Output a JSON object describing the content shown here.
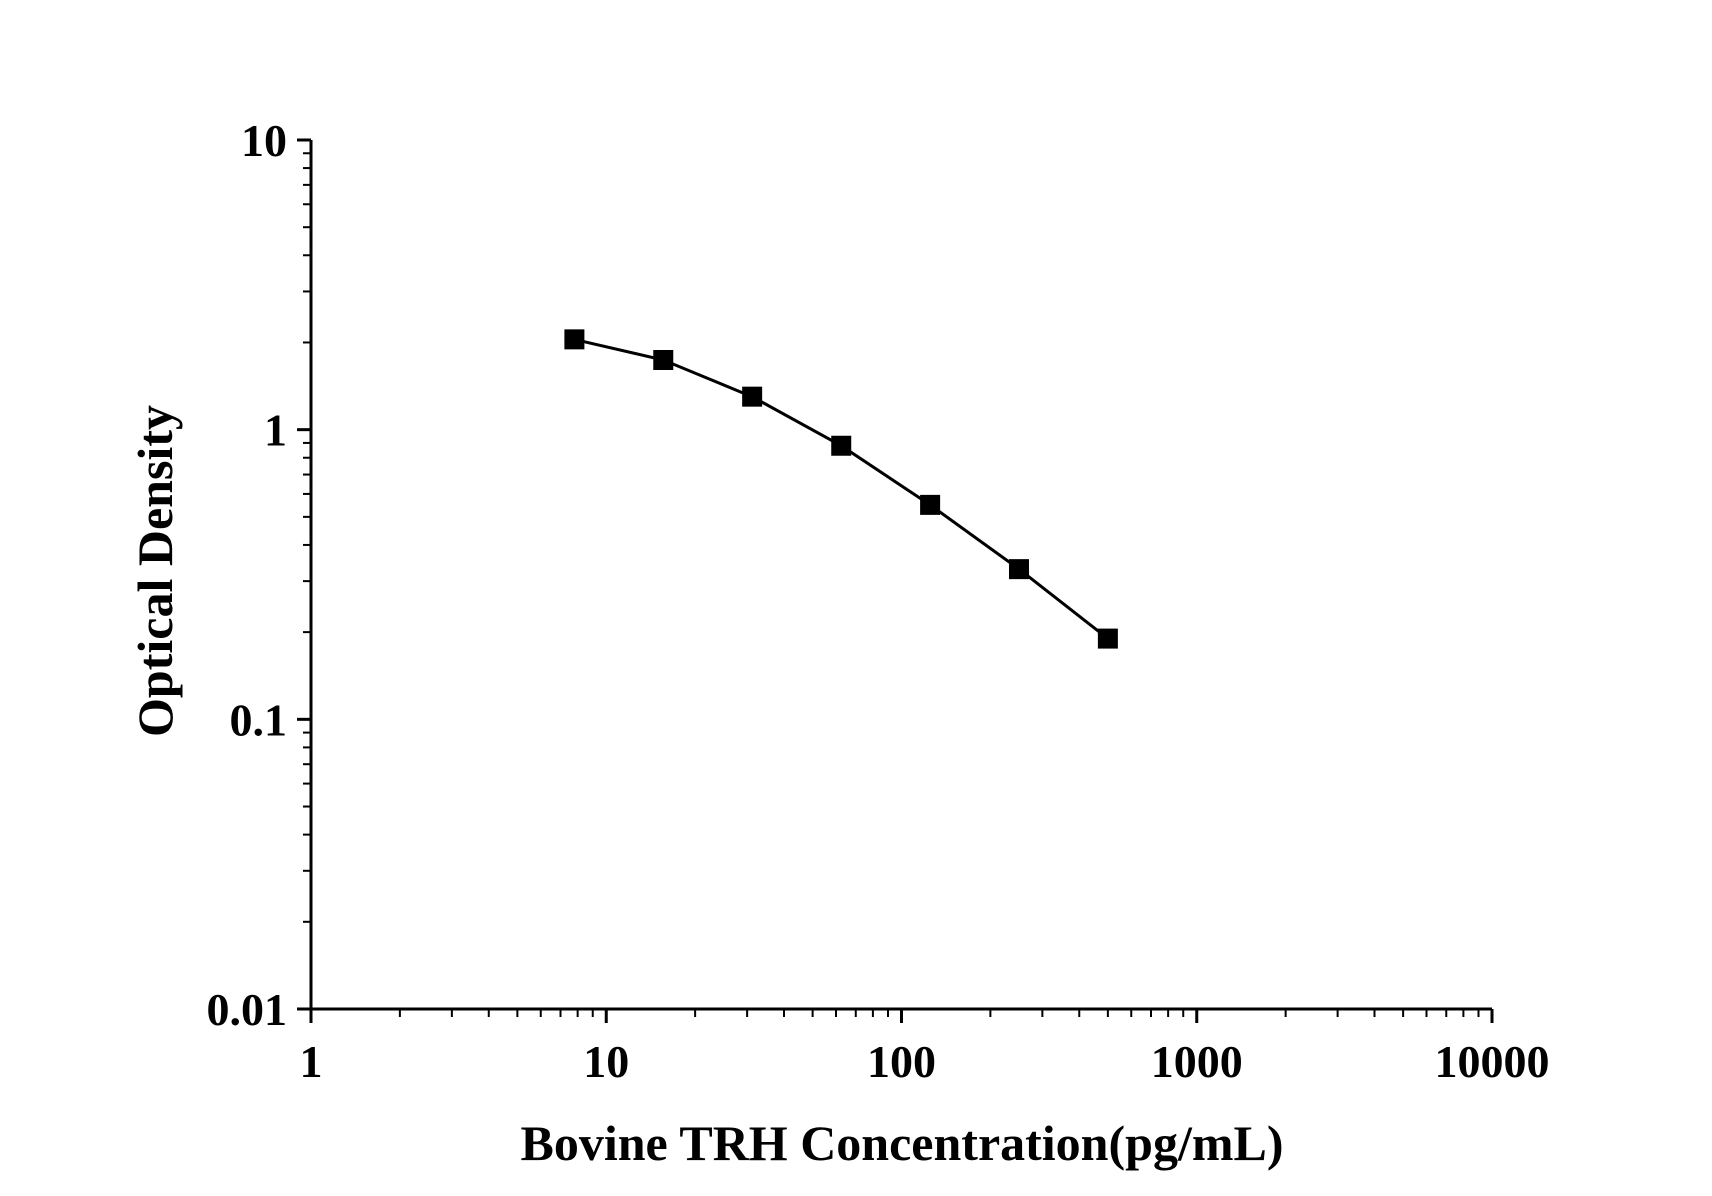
{
  "chart_data": {
    "type": "line",
    "title": "",
    "xlabel": "Bovine TRH Concentration(pg/mL)",
    "ylabel": "Optical Density",
    "x_scale": "log",
    "y_scale": "log",
    "xlim": [
      1,
      10000
    ],
    "ylim": [
      0.01,
      10
    ],
    "x_ticks": [
      "1",
      "10",
      "100",
      "1000",
      "10000"
    ],
    "y_ticks": [
      "0.01",
      "0.1",
      "1",
      "10"
    ],
    "grid": false,
    "legend": "none",
    "marker": "square",
    "colors": {
      "line": "#000000",
      "marker": "#000000",
      "axis": "#000000"
    },
    "series": [
      {
        "x": [
          7.8,
          15.6,
          31.2,
          62.5,
          125,
          250,
          500
        ],
        "y": [
          2.05,
          1.74,
          1.3,
          0.88,
          0.55,
          0.33,
          0.19
        ]
      }
    ]
  }
}
